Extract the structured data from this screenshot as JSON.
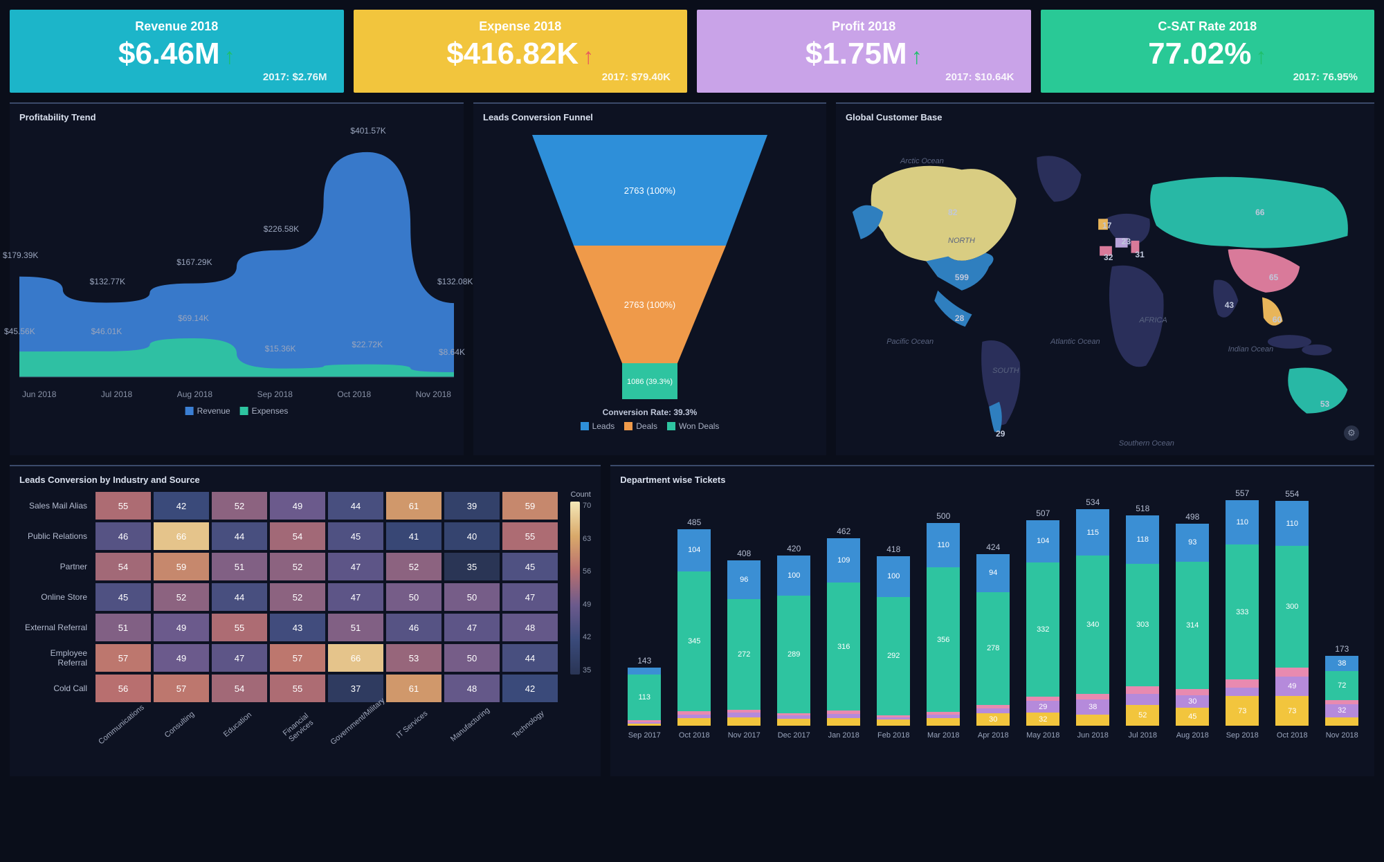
{
  "kpis": [
    {
      "title": "Revenue 2018",
      "value": "$6.46M",
      "arrow": "↑",
      "arrow_color": "#1fbf6b",
      "sub": "2017: $2.76M",
      "bg": "#1cb5c9"
    },
    {
      "title": "Expense 2018",
      "value": "$416.82K",
      "arrow": "↑",
      "arrow_color": "#e85c5c",
      "sub": "2017: $79.40K",
      "bg": "#f2c53d"
    },
    {
      "title": "Profit 2018",
      "value": "$1.75M",
      "arrow": "↑",
      "arrow_color": "#1fbf6b",
      "sub": "2017: $10.64K",
      "bg": "#c9a3e8"
    },
    {
      "title": "C-SAT Rate 2018",
      "value": "77.02%",
      "arrow": "↑",
      "arrow_color": "#1fbf6b",
      "sub": "2017: 76.95%",
      "bg": "#29c996"
    }
  ],
  "profitability": {
    "title": "Profitability Trend",
    "months": [
      "Jun 2018",
      "Jul 2018",
      "Aug 2018",
      "Sep 2018",
      "Oct 2018",
      "Nov 2018"
    ],
    "revenue": {
      "values": [
        179.39,
        132.77,
        167.29,
        226.58,
        401.57,
        132.08
      ],
      "color": "#3b7fd4",
      "label": "Revenue"
    },
    "expenses": {
      "values": [
        45.56,
        46.01,
        69.14,
        15.36,
        22.72,
        8.64
      ],
      "color": "#2ec4a0",
      "label": "Expenses"
    },
    "point_labels": [
      "$179.39K",
      "$132.77K",
      "$167.29K",
      "$226.58K",
      "$401.57K",
      "$132.08K"
    ],
    "expense_labels": [
      "$45.56K",
      "$46.01K",
      "$69.14K",
      "$15.36K",
      "$22.72K",
      "$8.64K"
    ],
    "ylim": [
      0,
      420
    ]
  },
  "funnel": {
    "title": "Leads Conversion Funnel",
    "stages": [
      {
        "label": "2763 (100%)",
        "color": "#2e8fd9",
        "name": "Leads"
      },
      {
        "label": "2763 (100%)",
        "color": "#ef9a4a",
        "name": "Deals"
      },
      {
        "label": "1086 (39.3%)",
        "color": "#2ec4a0",
        "name": "Won Deals"
      }
    ],
    "rate_text": "Conversion Rate: 39.3%"
  },
  "map": {
    "title": "Global Customer Base",
    "oceans": [
      "Arctic Ocean",
      "NORTH",
      "SOUTH",
      "Pacific Ocean",
      "Atlantic Ocean",
      "AFRICA",
      "Indian Ocean",
      "Southern Ocean"
    ],
    "countries": [
      {
        "name": "usa",
        "value": 599,
        "color": "#2f7fbf"
      },
      {
        "name": "canada",
        "value": 82,
        "color": "#d9cd82"
      },
      {
        "name": "russia",
        "value": 66,
        "color": "#28b8a5"
      },
      {
        "name": "china",
        "value": 65,
        "color": "#d97a9a"
      },
      {
        "name": "australia",
        "value": 53,
        "color": "#28b8a5"
      },
      {
        "name": "india",
        "value": 43,
        "color": "#2a3570"
      },
      {
        "name": "thailand",
        "value": 60,
        "color": "#e8b55a"
      },
      {
        "name": "spain",
        "value": 32,
        "color": "#d97a9a"
      },
      {
        "name": "italy",
        "value": 31,
        "color": "#d97a9a"
      },
      {
        "name": "germany",
        "value": 23,
        "color": "#b8a3d9"
      },
      {
        "name": "uk",
        "value": 17,
        "color": "#e8b55a"
      },
      {
        "name": "mexico",
        "value": 28,
        "color": "#2f7fbf"
      },
      {
        "name": "chile",
        "value": 29,
        "color": "#2f7fbf"
      }
    ],
    "base_color": "#2a2f5a"
  },
  "heatmap": {
    "title": "Leads Conversion by Industry and Source",
    "rows": [
      "Sales Mail Alias",
      "Public Relations",
      "Partner",
      "Online Store",
      "External Referral",
      "Employee Referral",
      "Cold Call"
    ],
    "cols": [
      "Communications",
      "Consulting",
      "Education",
      "Financial Services",
      "Government/Military",
      "IT Services",
      "Manufacturing",
      "Technology"
    ],
    "cells": [
      [
        55,
        42,
        52,
        49,
        44,
        61,
        39,
        59
      ],
      [
        46,
        66,
        44,
        54,
        45,
        41,
        40,
        55
      ],
      [
        54,
        59,
        51,
        52,
        47,
        52,
        35,
        45
      ],
      [
        45,
        52,
        44,
        52,
        47,
        50,
        50,
        47
      ],
      [
        51,
        49,
        55,
        43,
        51,
        46,
        47,
        48
      ],
      [
        57,
        49,
        47,
        57,
        66,
        53,
        50,
        44
      ],
      [
        56,
        57,
        54,
        55,
        37,
        61,
        48,
        42
      ]
    ],
    "scale": {
      "min": 35,
      "max": 70,
      "ticks": [
        70,
        63,
        56,
        49,
        42,
        35
      ],
      "label": "Count"
    },
    "legend_colors": {
      "low": "#2a3555",
      "mid_low": "#3a4a7a",
      "mid": "#6b5a8c",
      "mid_high": "#b86f6f",
      "high": "#d9a96a",
      "highest": "#f4e8b8"
    }
  },
  "tickets": {
    "title": "Department wise Tickets",
    "months": [
      "Sep 2017",
      "Oct 2018",
      "Nov 2017",
      "Dec 2017",
      "Jan 2018",
      "Feb 2018",
      "Mar 2018",
      "Apr 2018",
      "May 2018",
      "Jun 2018",
      "Jul 2018",
      "Aug 2018",
      "Sep 2018",
      "Oct 2018",
      "Nov 2018"
    ],
    "totals": [
      143,
      485,
      408,
      420,
      462,
      418,
      500,
      424,
      507,
      534,
      518,
      498,
      557,
      554,
      173
    ],
    "seg_colors": {
      "bot_yellow": "#f2c53d",
      "purple": "#b58adb",
      "pink": "#e88ab0",
      "teal": "#2ec4a0",
      "blue": "#3b8fd4"
    },
    "stacks": [
      {
        "blue": 16,
        "teal": 113,
        "pink": 5,
        "purple": 4,
        "yellow": 5
      },
      {
        "blue": 104,
        "teal": 345,
        "pink": 8,
        "purple": 10,
        "yellow": 18
      },
      {
        "blue": 96,
        "teal": 272,
        "pink": 8,
        "purple": 12,
        "yellow": 20
      },
      {
        "blue": 100,
        "teal": 289,
        "pink": 6,
        "purple": 8,
        "yellow": 17
      },
      {
        "blue": 109,
        "teal": 316,
        "pink": 8,
        "purple": 10,
        "yellow": 19
      },
      {
        "blue": 100,
        "teal": 292,
        "pink": 5,
        "purple": 6,
        "yellow": 15
      },
      {
        "blue": 110,
        "teal": 356,
        "pink": 7,
        "purple": 9,
        "yellow": 18
      },
      {
        "blue": 94,
        "teal": 278,
        "pink": 9,
        "purple": 13,
        "yellow": 30
      },
      {
        "blue": 104,
        "teal": 332,
        "pink": 10,
        "purple": 29,
        "yellow": 32
      },
      {
        "blue": 115,
        "teal": 340,
        "pink": 14,
        "purple": 38,
        "yellow": 27
      },
      {
        "blue": 118,
        "teal": 303,
        "pink": 18,
        "purple": 27,
        "yellow": 52
      },
      {
        "blue": 93,
        "teal": 314,
        "pink": 16,
        "purple": 30,
        "yellow": 45
      },
      {
        "blue": 110,
        "teal": 333,
        "pink": 20,
        "purple": 21,
        "yellow": 73
      },
      {
        "blue": 110,
        "teal": 300,
        "pink": 22,
        "purple": 49,
        "yellow": 73
      },
      {
        "blue": 38,
        "teal": 72,
        "pink": 10,
        "purple": 32,
        "yellow": 21
      }
    ],
    "ymax": 580
  }
}
